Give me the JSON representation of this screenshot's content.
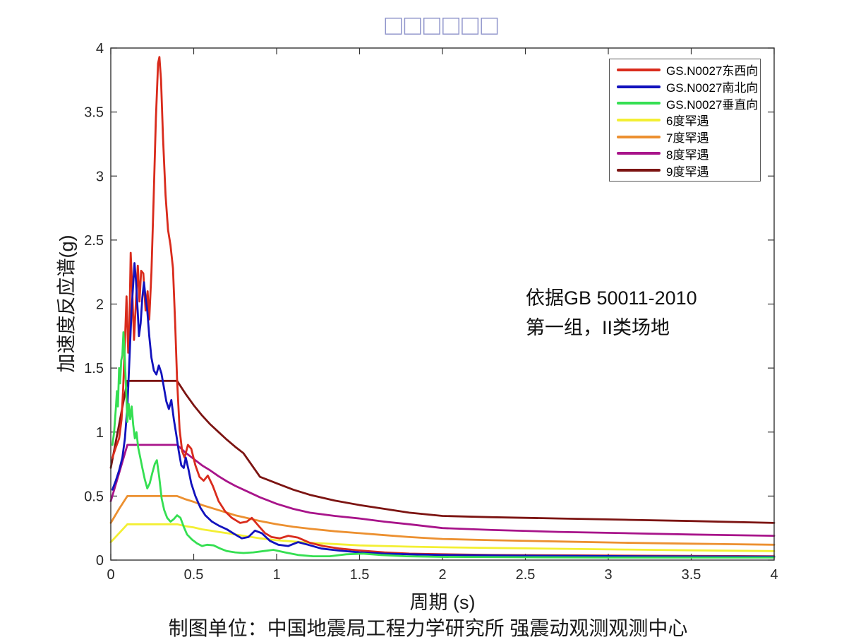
{
  "figure": {
    "title_missing_glyphs": "□□□□□□",
    "annotation": {
      "line1": "依据GB 50011-2010",
      "line2": "第一组，II类场地"
    },
    "caption": "制图单位：中国地震局工程力学研究所 强震动观测观测中心"
  },
  "chart_data": {
    "type": "line",
    "title": "□□□□□□",
    "xlabel": "周期 (s)",
    "ylabel": "加速度反应谱(g)",
    "xlim": [
      0,
      4
    ],
    "ylim": [
      0,
      4
    ],
    "x_ticks": [
      0,
      0.5,
      1,
      1.5,
      2,
      2.5,
      3,
      3.5,
      4
    ],
    "y_ticks": [
      0,
      0.5,
      1,
      1.5,
      2,
      2.5,
      3,
      3.5,
      4
    ],
    "grid": false,
    "legend_position": "top-right",
    "axis_color": "#333333",
    "tick_label_color": "#262626",
    "title_color": "#9095cb",
    "line_width": 2.8,
    "draw_order": [
      3,
      4,
      5,
      6,
      0,
      1,
      2
    ],
    "series": [
      {
        "name": "GS.N0027东西向",
        "color": "#d92b1c",
        "peak": {
          "x": 0.29,
          "y": 3.93
        },
        "points": [
          [
            0.01,
            0.8
          ],
          [
            0.03,
            0.88
          ],
          [
            0.05,
            0.95
          ],
          [
            0.065,
            1.1
          ],
          [
            0.075,
            1.35
          ],
          [
            0.085,
            1.7
          ],
          [
            0.095,
            2.06
          ],
          [
            0.105,
            1.62
          ],
          [
            0.112,
            1.8
          ],
          [
            0.12,
            2.4
          ],
          [
            0.128,
            2.15
          ],
          [
            0.14,
            1.72
          ],
          [
            0.15,
            1.98
          ],
          [
            0.163,
            2.3
          ],
          [
            0.173,
            2.02
          ],
          [
            0.183,
            2.26
          ],
          [
            0.196,
            2.24
          ],
          [
            0.21,
            1.95
          ],
          [
            0.222,
            2.1
          ],
          [
            0.232,
            1.88
          ],
          [
            0.245,
            2.25
          ],
          [
            0.258,
            2.8
          ],
          [
            0.272,
            3.45
          ],
          [
            0.285,
            3.88
          ],
          [
            0.293,
            3.93
          ],
          [
            0.303,
            3.75
          ],
          [
            0.315,
            3.3
          ],
          [
            0.33,
            2.85
          ],
          [
            0.345,
            2.58
          ],
          [
            0.36,
            2.46
          ],
          [
            0.375,
            2.28
          ],
          [
            0.388,
            1.85
          ],
          [
            0.4,
            1.4
          ],
          [
            0.415,
            1.02
          ],
          [
            0.43,
            0.85
          ],
          [
            0.445,
            0.8
          ],
          [
            0.465,
            0.9
          ],
          [
            0.485,
            0.87
          ],
          [
            0.51,
            0.74
          ],
          [
            0.535,
            0.65
          ],
          [
            0.56,
            0.62
          ],
          [
            0.585,
            0.66
          ],
          [
            0.615,
            0.58
          ],
          [
            0.65,
            0.46
          ],
          [
            0.69,
            0.38
          ],
          [
            0.73,
            0.33
          ],
          [
            0.78,
            0.29
          ],
          [
            0.82,
            0.3
          ],
          [
            0.85,
            0.33
          ],
          [
            0.89,
            0.27
          ],
          [
            0.93,
            0.21
          ],
          [
            0.97,
            0.18
          ],
          [
            1.02,
            0.17
          ],
          [
            1.07,
            0.19
          ],
          [
            1.13,
            0.175
          ],
          [
            1.2,
            0.135
          ],
          [
            1.28,
            0.11
          ],
          [
            1.38,
            0.09
          ],
          [
            1.5,
            0.075
          ],
          [
            1.65,
            0.06
          ],
          [
            1.8,
            0.05
          ],
          [
            2.0,
            0.045
          ],
          [
            2.3,
            0.04
          ],
          [
            2.7,
            0.037
          ],
          [
            3.1,
            0.034
          ],
          [
            3.5,
            0.032
          ],
          [
            4.0,
            0.03
          ]
        ]
      },
      {
        "name": "GS.N0027南北向",
        "color": "#1212bd",
        "peak": {
          "x": 0.143,
          "y": 2.32
        },
        "points": [
          [
            0.01,
            0.55
          ],
          [
            0.03,
            0.62
          ],
          [
            0.05,
            0.7
          ],
          [
            0.07,
            0.8
          ],
          [
            0.085,
            0.95
          ],
          [
            0.1,
            1.2
          ],
          [
            0.112,
            1.55
          ],
          [
            0.125,
            1.95
          ],
          [
            0.135,
            2.15
          ],
          [
            0.143,
            2.32
          ],
          [
            0.152,
            2.18
          ],
          [
            0.162,
            1.95
          ],
          [
            0.17,
            1.75
          ],
          [
            0.18,
            1.85
          ],
          [
            0.19,
            2.05
          ],
          [
            0.2,
            2.17
          ],
          [
            0.21,
            2.05
          ],
          [
            0.22,
            1.95
          ],
          [
            0.232,
            1.75
          ],
          [
            0.245,
            1.58
          ],
          [
            0.26,
            1.48
          ],
          [
            0.275,
            1.45
          ],
          [
            0.29,
            1.52
          ],
          [
            0.305,
            1.46
          ],
          [
            0.32,
            1.35
          ],
          [
            0.335,
            1.24
          ],
          [
            0.35,
            1.18
          ],
          [
            0.365,
            1.25
          ],
          [
            0.38,
            1.1
          ],
          [
            0.395,
            0.98
          ],
          [
            0.41,
            0.85
          ],
          [
            0.425,
            0.74
          ],
          [
            0.44,
            0.72
          ],
          [
            0.452,
            0.8
          ],
          [
            0.468,
            0.71
          ],
          [
            0.485,
            0.6
          ],
          [
            0.51,
            0.5
          ],
          [
            0.54,
            0.41
          ],
          [
            0.57,
            0.35
          ],
          [
            0.61,
            0.3
          ],
          [
            0.65,
            0.27
          ],
          [
            0.7,
            0.24
          ],
          [
            0.75,
            0.2
          ],
          [
            0.79,
            0.17
          ],
          [
            0.83,
            0.18
          ],
          [
            0.87,
            0.23
          ],
          [
            0.91,
            0.21
          ],
          [
            0.96,
            0.15
          ],
          [
            1.01,
            0.12
          ],
          [
            1.07,
            0.11
          ],
          [
            1.13,
            0.14
          ],
          [
            1.19,
            0.12
          ],
          [
            1.27,
            0.09
          ],
          [
            1.37,
            0.075
          ],
          [
            1.5,
            0.06
          ],
          [
            1.65,
            0.05
          ],
          [
            1.8,
            0.045
          ],
          [
            2.0,
            0.04
          ],
          [
            2.4,
            0.035
          ],
          [
            2.8,
            0.032
          ],
          [
            3.2,
            0.03
          ],
          [
            3.6,
            0.028
          ],
          [
            4.0,
            0.027
          ]
        ]
      },
      {
        "name": "GS.N0027垂直向",
        "color": "#35df52",
        "peak": {
          "x": 0.076,
          "y": 1.78
        },
        "points": [
          [
            0.01,
            0.9
          ],
          [
            0.02,
            1.0
          ],
          [
            0.03,
            1.18
          ],
          [
            0.037,
            1.32
          ],
          [
            0.043,
            1.2
          ],
          [
            0.05,
            1.5
          ],
          [
            0.056,
            1.38
          ],
          [
            0.063,
            1.56
          ],
          [
            0.07,
            1.6
          ],
          [
            0.076,
            1.78
          ],
          [
            0.083,
            1.62
          ],
          [
            0.09,
            1.4
          ],
          [
            0.1,
            1.08
          ],
          [
            0.108,
            1.22
          ],
          [
            0.117,
            1.1
          ],
          [
            0.126,
            1.2
          ],
          [
            0.135,
            1.06
          ],
          [
            0.145,
            0.95
          ],
          [
            0.155,
            1.0
          ],
          [
            0.165,
            0.88
          ],
          [
            0.178,
            0.8
          ],
          [
            0.19,
            0.72
          ],
          [
            0.205,
            0.63
          ],
          [
            0.22,
            0.56
          ],
          [
            0.235,
            0.6
          ],
          [
            0.25,
            0.68
          ],
          [
            0.265,
            0.75
          ],
          [
            0.278,
            0.78
          ],
          [
            0.292,
            0.65
          ],
          [
            0.307,
            0.48
          ],
          [
            0.322,
            0.39
          ],
          [
            0.34,
            0.33
          ],
          [
            0.36,
            0.3
          ],
          [
            0.38,
            0.32
          ],
          [
            0.4,
            0.35
          ],
          [
            0.42,
            0.33
          ],
          [
            0.44,
            0.26
          ],
          [
            0.46,
            0.2
          ],
          [
            0.49,
            0.16
          ],
          [
            0.52,
            0.13
          ],
          [
            0.55,
            0.11
          ],
          [
            0.58,
            0.12
          ],
          [
            0.62,
            0.115
          ],
          [
            0.66,
            0.09
          ],
          [
            0.7,
            0.07
          ],
          [
            0.75,
            0.06
          ],
          [
            0.8,
            0.055
          ],
          [
            0.86,
            0.06
          ],
          [
            0.92,
            0.07
          ],
          [
            0.98,
            0.08
          ],
          [
            1.05,
            0.06
          ],
          [
            1.13,
            0.04
          ],
          [
            1.22,
            0.03
          ],
          [
            1.32,
            0.03
          ],
          [
            1.42,
            0.045
          ],
          [
            1.52,
            0.05
          ],
          [
            1.63,
            0.04
          ],
          [
            1.78,
            0.03
          ],
          [
            2.0,
            0.025
          ],
          [
            2.5,
            0.022
          ],
          [
            3.0,
            0.02
          ],
          [
            3.5,
            0.02
          ],
          [
            4.0,
            0.02
          ]
        ]
      },
      {
        "name": "6度罕遇",
        "color": "#f3ef33",
        "plateau": {
          "from": 0.1,
          "to": 0.4,
          "value": 0.28
        },
        "points": [
          [
            0,
            0.14
          ],
          [
            0.05,
            0.21
          ],
          [
            0.1,
            0.28
          ],
          [
            0.4,
            0.28
          ],
          [
            0.45,
            0.265
          ],
          [
            0.5,
            0.255
          ],
          [
            0.55,
            0.24
          ],
          [
            0.6,
            0.23
          ],
          [
            0.65,
            0.22
          ],
          [
            0.7,
            0.21
          ],
          [
            0.75,
            0.2
          ],
          [
            0.8,
            0.19
          ],
          [
            0.9,
            0.17
          ],
          [
            1.0,
            0.155
          ],
          [
            1.1,
            0.145
          ],
          [
            1.2,
            0.135
          ],
          [
            1.35,
            0.125
          ],
          [
            1.5,
            0.115
          ],
          [
            1.65,
            0.11
          ],
          [
            1.8,
            0.105
          ],
          [
            2.0,
            0.1
          ],
          [
            2.3,
            0.095
          ],
          [
            2.7,
            0.088
          ],
          [
            3.1,
            0.082
          ],
          [
            3.5,
            0.076
          ],
          [
            4.0,
            0.07
          ]
        ]
      },
      {
        "name": "7度罕遇",
        "color": "#ec9030",
        "plateau": {
          "from": 0.1,
          "to": 0.4,
          "value": 0.5
        },
        "points": [
          [
            0,
            0.29
          ],
          [
            0.05,
            0.4
          ],
          [
            0.1,
            0.5
          ],
          [
            0.4,
            0.5
          ],
          [
            0.45,
            0.475
          ],
          [
            0.5,
            0.455
          ],
          [
            0.55,
            0.43
          ],
          [
            0.6,
            0.41
          ],
          [
            0.65,
            0.39
          ],
          [
            0.7,
            0.37
          ],
          [
            0.75,
            0.35
          ],
          [
            0.8,
            0.335
          ],
          [
            0.9,
            0.305
          ],
          [
            1.0,
            0.28
          ],
          [
            1.1,
            0.26
          ],
          [
            1.2,
            0.245
          ],
          [
            1.35,
            0.225
          ],
          [
            1.5,
            0.21
          ],
          [
            1.65,
            0.195
          ],
          [
            1.8,
            0.18
          ],
          [
            2.0,
            0.165
          ],
          [
            2.3,
            0.155
          ],
          [
            2.7,
            0.145
          ],
          [
            3.1,
            0.135
          ],
          [
            3.5,
            0.128
          ],
          [
            4.0,
            0.12
          ]
        ]
      },
      {
        "name": "8度罕遇",
        "color": "#a8148a",
        "plateau": {
          "from": 0.1,
          "to": 0.4,
          "value": 0.9
        },
        "points": [
          [
            0,
            0.46
          ],
          [
            0.05,
            0.68
          ],
          [
            0.1,
            0.9
          ],
          [
            0.4,
            0.9
          ],
          [
            0.45,
            0.84
          ],
          [
            0.5,
            0.79
          ],
          [
            0.55,
            0.74
          ],
          [
            0.6,
            0.7
          ],
          [
            0.65,
            0.655
          ],
          [
            0.7,
            0.615
          ],
          [
            0.75,
            0.58
          ],
          [
            0.8,
            0.55
          ],
          [
            0.9,
            0.49
          ],
          [
            1.0,
            0.44
          ],
          [
            1.1,
            0.4
          ],
          [
            1.2,
            0.37
          ],
          [
            1.35,
            0.345
          ],
          [
            1.5,
            0.325
          ],
          [
            1.65,
            0.3
          ],
          [
            1.8,
            0.28
          ],
          [
            2.0,
            0.25
          ],
          [
            2.3,
            0.235
          ],
          [
            2.7,
            0.22
          ],
          [
            3.1,
            0.21
          ],
          [
            3.5,
            0.2
          ],
          [
            4.0,
            0.19
          ]
        ]
      },
      {
        "name": "9度罕遇",
        "color": "#7c1412",
        "plateau": {
          "from": 0.1,
          "to": 0.4,
          "value": 1.4
        },
        "points": [
          [
            0,
            0.72
          ],
          [
            0.05,
            1.06
          ],
          [
            0.1,
            1.4
          ],
          [
            0.4,
            1.4
          ],
          [
            0.45,
            1.3
          ],
          [
            0.5,
            1.21
          ],
          [
            0.55,
            1.13
          ],
          [
            0.6,
            1.06
          ],
          [
            0.65,
            1.0
          ],
          [
            0.7,
            0.94
          ],
          [
            0.75,
            0.885
          ],
          [
            0.8,
            0.835
          ],
          [
            0.9,
            0.65
          ],
          [
            1.0,
            0.6
          ],
          [
            1.1,
            0.55
          ],
          [
            1.2,
            0.51
          ],
          [
            1.35,
            0.465
          ],
          [
            1.5,
            0.43
          ],
          [
            1.65,
            0.4
          ],
          [
            1.8,
            0.37
          ],
          [
            2.0,
            0.345
          ],
          [
            2.3,
            0.335
          ],
          [
            2.7,
            0.325
          ],
          [
            3.1,
            0.315
          ],
          [
            3.5,
            0.305
          ],
          [
            4.0,
            0.29
          ]
        ]
      }
    ]
  }
}
